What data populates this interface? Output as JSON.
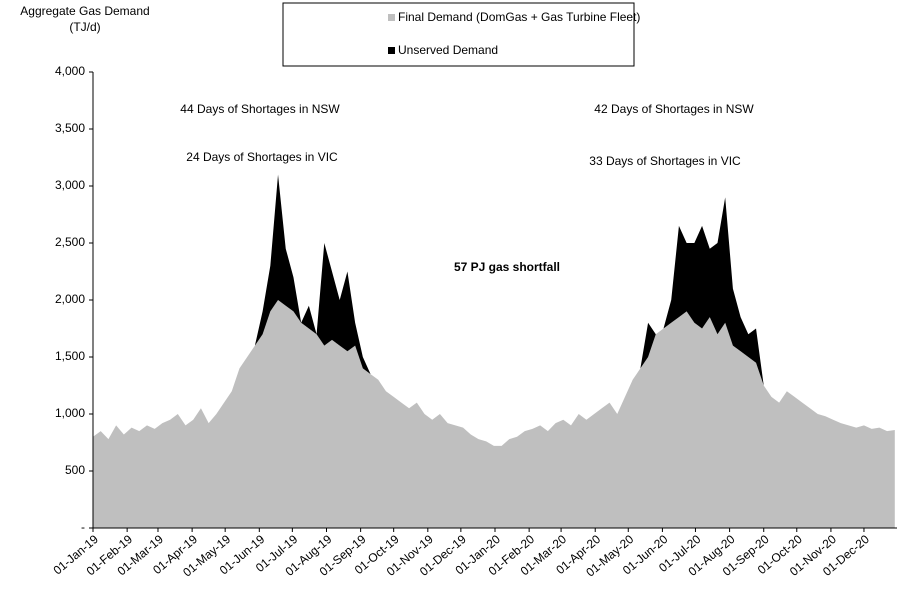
{
  "chart_data": {
    "type": "stacked_area",
    "ylabel": [
      "Aggregate Gas Demand",
      "(TJ/d)"
    ],
    "annotations": [
      "44 Days of Shortages in NSW",
      "24 Days of Shortages in VIC",
      "42 Days of Shortages in NSW",
      "33 Days of Shortages in VIC",
      "57 PJ gas shortfall"
    ],
    "x": [
      "2019-01-01",
      "2019-01-08",
      "2019-01-15",
      "2019-01-22",
      "2019-01-29",
      "2019-02-05",
      "2019-02-12",
      "2019-02-19",
      "2019-02-26",
      "2019-03-05",
      "2019-03-12",
      "2019-03-19",
      "2019-03-26",
      "2019-04-02",
      "2019-04-09",
      "2019-04-16",
      "2019-04-23",
      "2019-04-30",
      "2019-05-07",
      "2019-05-14",
      "2019-05-21",
      "2019-05-28",
      "2019-06-04",
      "2019-06-11",
      "2019-06-18",
      "2019-06-25",
      "2019-07-02",
      "2019-07-09",
      "2019-07-16",
      "2019-07-23",
      "2019-07-30",
      "2019-08-06",
      "2019-08-13",
      "2019-08-20",
      "2019-08-27",
      "2019-09-03",
      "2019-09-10",
      "2019-09-17",
      "2019-09-24",
      "2019-10-01",
      "2019-10-08",
      "2019-10-15",
      "2019-10-22",
      "2019-10-29",
      "2019-11-05",
      "2019-11-12",
      "2019-11-19",
      "2019-11-26",
      "2019-12-03",
      "2019-12-10",
      "2019-12-17",
      "2019-12-24",
      "2019-12-31",
      "2020-01-07",
      "2020-01-14",
      "2020-01-21",
      "2020-01-28",
      "2020-02-04",
      "2020-02-11",
      "2020-02-18",
      "2020-02-25",
      "2020-03-03",
      "2020-03-10",
      "2020-03-17",
      "2020-03-24",
      "2020-03-31",
      "2020-04-07",
      "2020-04-14",
      "2020-04-21",
      "2020-04-28",
      "2020-05-05",
      "2020-05-12",
      "2020-05-19",
      "2020-05-26",
      "2020-06-02",
      "2020-06-09",
      "2020-06-16",
      "2020-06-23",
      "2020-06-30",
      "2020-07-07",
      "2020-07-14",
      "2020-07-21",
      "2020-07-28",
      "2020-08-04",
      "2020-08-11",
      "2020-08-18",
      "2020-08-25",
      "2020-09-01",
      "2020-09-08",
      "2020-09-15",
      "2020-09-22",
      "2020-09-29",
      "2020-10-06",
      "2020-10-13",
      "2020-10-20",
      "2020-10-27",
      "2020-11-03",
      "2020-11-10",
      "2020-11-17",
      "2020-11-24",
      "2020-12-01",
      "2020-12-08",
      "2020-12-15",
      "2020-12-22",
      "2020-12-29"
    ],
    "series": [
      {
        "name": "Final Demand (DomGas + Gas Turbine Fleet)",
        "color": "#bfbfbf",
        "values": [
          800,
          850,
          780,
          900,
          820,
          880,
          850,
          900,
          870,
          920,
          950,
          1000,
          900,
          950,
          1050,
          920,
          1000,
          1100,
          1200,
          1400,
          1500,
          1600,
          1700,
          1900,
          2000,
          1950,
          1900,
          1800,
          1750,
          1700,
          1600,
          1650,
          1600,
          1550,
          1600,
          1400,
          1350,
          1300,
          1200,
          1150,
          1100,
          1050,
          1100,
          1000,
          950,
          1000,
          920,
          900,
          880,
          820,
          780,
          760,
          720,
          720,
          780,
          800,
          850,
          870,
          900,
          850,
          920,
          950,
          900,
          1000,
          950,
          1000,
          1050,
          1100,
          1000,
          1150,
          1300,
          1400,
          1500,
          1700,
          1750,
          1800,
          1850,
          1900,
          1800,
          1750,
          1850,
          1700,
          1800,
          1600,
          1550,
          1500,
          1450,
          1250,
          1150,
          1100,
          1200,
          1150,
          1100,
          1050,
          1000,
          980,
          950,
          920,
          900,
          880,
          900,
          870,
          880,
          850,
          860
        ]
      },
      {
        "name": "Unserved Demand",
        "color": "#000000",
        "values": [
          0,
          0,
          0,
          0,
          0,
          0,
          0,
          0,
          0,
          0,
          0,
          0,
          0,
          0,
          0,
          0,
          0,
          0,
          0,
          0,
          0,
          0,
          200,
          400,
          1100,
          500,
          300,
          0,
          200,
          0,
          900,
          600,
          400,
          700,
          200,
          100,
          0,
          0,
          0,
          0,
          0,
          0,
          0,
          0,
          0,
          0,
          0,
          0,
          0,
          0,
          0,
          0,
          0,
          0,
          0,
          0,
          0,
          0,
          0,
          0,
          0,
          0,
          0,
          0,
          0,
          0,
          0,
          0,
          0,
          0,
          0,
          0,
          300,
          0,
          0,
          200,
          800,
          600,
          700,
          900,
          600,
          800,
          1100,
          500,
          300,
          200,
          300,
          0,
          0,
          0,
          0,
          0,
          0,
          0,
          0,
          0,
          0,
          0,
          0,
          0,
          0,
          0,
          0,
          0,
          0
        ]
      }
    ],
    "xlim": [
      "2019-01-01",
      "2020-12-31"
    ],
    "xticks": [
      {
        "value": "2019-01-01",
        "label": "01-Jan-19"
      },
      {
        "value": "2019-02-01",
        "label": "01-Feb-19"
      },
      {
        "value": "2019-03-01",
        "label": "01-Mar-19"
      },
      {
        "value": "2019-04-01",
        "label": "01-Apr-19"
      },
      {
        "value": "2019-05-01",
        "label": "01-May-19"
      },
      {
        "value": "2019-06-01",
        "label": "01-Jun-19"
      },
      {
        "value": "2019-07-01",
        "label": "01-Jul-19"
      },
      {
        "value": "2019-08-01",
        "label": "01-Aug-19"
      },
      {
        "value": "2019-09-01",
        "label": "01-Sep-19"
      },
      {
        "value": "2019-10-01",
        "label": "01-Oct-19"
      },
      {
        "value": "2019-11-01",
        "label": "01-Nov-19"
      },
      {
        "value": "2019-12-01",
        "label": "01-Dec-19"
      },
      {
        "value": "2020-01-01",
        "label": "01-Jan-20"
      },
      {
        "value": "2020-02-01",
        "label": "01-Feb-20"
      },
      {
        "value": "2020-03-01",
        "label": "01-Mar-20"
      },
      {
        "value": "2020-04-01",
        "label": "01-Apr-20"
      },
      {
        "value": "2020-05-01",
        "label": "01-May-20"
      },
      {
        "value": "2020-06-01",
        "label": "01-Jun-20"
      },
      {
        "value": "2020-07-01",
        "label": "01-Jul-20"
      },
      {
        "value": "2020-08-01",
        "label": "01-Aug-20"
      },
      {
        "value": "2020-09-01",
        "label": "01-Sep-20"
      },
      {
        "value": "2020-10-01",
        "label": "01-Oct-20"
      },
      {
        "value": "2020-11-01",
        "label": "01-Nov-20"
      },
      {
        "value": "2020-12-01",
        "label": "01-Dec-20"
      }
    ],
    "ylim": [
      0,
      4000
    ],
    "yticks": [
      {
        "value": 0,
        "label": "-"
      },
      500,
      {
        "value": 1000,
        "label": "1,000"
      },
      {
        "value": 1500,
        "label": "1,500"
      },
      {
        "value": 2000,
        "label": "2,000"
      },
      {
        "value": 2500,
        "label": "2,500"
      },
      {
        "value": 3000,
        "label": "3,000"
      },
      {
        "value": 3500,
        "label": "3,500"
      },
      {
        "value": 4000,
        "label": "4,000"
      }
    ],
    "legend": "top"
  }
}
